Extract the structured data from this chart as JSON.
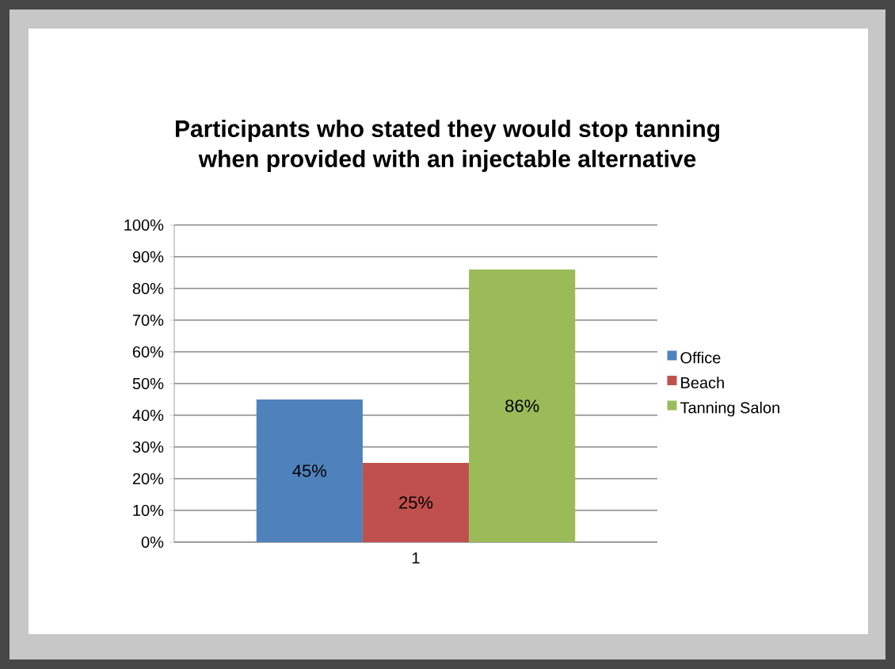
{
  "chart_data": {
    "type": "bar",
    "title": "Participants who stated they would stop tanning\nwhen provided with an injectable alternative",
    "categories": [
      "1"
    ],
    "series": [
      {
        "name": "Office",
        "color": "#4f81bd",
        "values": [
          45
        ],
        "value_labels": [
          "45%"
        ]
      },
      {
        "name": "Beach",
        "color": "#c0504d",
        "values": [
          25
        ],
        "value_labels": [
          "25%"
        ]
      },
      {
        "name": "Tanning Salon",
        "color": "#9bbb59",
        "values": [
          86
        ],
        "value_labels": [
          "86%"
        ]
      }
    ],
    "ylim": [
      0,
      100
    ],
    "yticks": [
      {
        "value": 0,
        "label": "0%"
      },
      {
        "value": 10,
        "label": "10%"
      },
      {
        "value": 20,
        "label": "20%"
      },
      {
        "value": 30,
        "label": "30%"
      },
      {
        "value": 40,
        "label": "40%"
      },
      {
        "value": 50,
        "label": "50%"
      },
      {
        "value": 60,
        "label": "60%"
      },
      {
        "value": 70,
        "label": "70%"
      },
      {
        "value": 80,
        "label": "80%"
      },
      {
        "value": 90,
        "label": "90%"
      },
      {
        "value": 100,
        "label": "100%"
      }
    ],
    "grid": "y",
    "legend": "right"
  }
}
